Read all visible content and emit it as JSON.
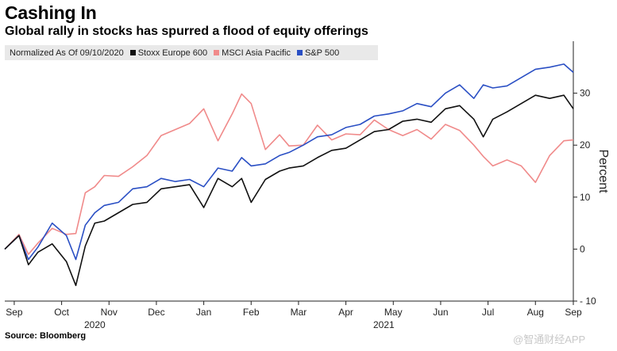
{
  "title": "Cashing In",
  "subtitle": "Global rally in stocks has spurred a flood of equity offerings",
  "legend_note": "Normalized As Of 09/10/2020",
  "source": "Source: Bloomberg",
  "watermark": "@智通财经APP",
  "chart_data": {
    "type": "line",
    "title": "Cashing In",
    "subtitle": "Global rally in stocks has spurred a flood of equity offerings",
    "ylabel": "Percent",
    "xlabel": "",
    "ylim": [
      -10,
      40
    ],
    "yticks": [
      -10,
      0,
      10,
      20,
      30
    ],
    "y_axis_side": "right",
    "xlim": [
      0,
      12
    ],
    "months": [
      "Sep",
      "Oct",
      "Nov",
      "Dec",
      "Jan",
      "Feb",
      "Mar",
      "Apr",
      "May",
      "Jun",
      "Jul",
      "Aug",
      "Sep"
    ],
    "month_positions": [
      0.2,
      1.2,
      2.2,
      3.2,
      4.2,
      5.2,
      6.2,
      7.2,
      8.2,
      9.2,
      10.2,
      11.2,
      12.0
    ],
    "years": [
      {
        "label": "2020",
        "x": 1.9
      },
      {
        "label": "2021",
        "x": 8.0
      }
    ],
    "legend_position": "top-left",
    "series": [
      {
        "name": "Stoxx Europe 600",
        "color": "#111111",
        "x": [
          0,
          0.3,
          0.5,
          0.7,
          1.0,
          1.3,
          1.5,
          1.7,
          1.9,
          2.1,
          2.4,
          2.7,
          3.0,
          3.3,
          3.6,
          3.9,
          4.2,
          4.5,
          4.8,
          5.0,
          5.2,
          5.5,
          5.8,
          6.0,
          6.3,
          6.6,
          6.9,
          7.2,
          7.5,
          7.8,
          8.1,
          8.4,
          8.7,
          9.0,
          9.3,
          9.6,
          9.9,
          10.1,
          10.3,
          10.6,
          10.9,
          11.2,
          11.5,
          11.8,
          12.0
        ],
        "y": [
          0,
          2,
          -3,
          0,
          1,
          -3,
          -7,
          0,
          5,
          6,
          7,
          8,
          9,
          11,
          12,
          13,
          8,
          13,
          12,
          13,
          9,
          14,
          15,
          15,
          16,
          17,
          19,
          20,
          21,
          22,
          23,
          24,
          25,
          25,
          27,
          27,
          25,
          21,
          25,
          27,
          28,
          29,
          29,
          29,
          27
        ]
      },
      {
        "name": "MSCI Asia Pacific",
        "color": "#f08a8a",
        "x": [
          0,
          0.3,
          0.5,
          0.7,
          1.0,
          1.3,
          1.5,
          1.7,
          1.9,
          2.1,
          2.4,
          2.7,
          3.0,
          3.3,
          3.6,
          3.9,
          4.2,
          4.5,
          4.8,
          5.0,
          5.2,
          5.5,
          5.8,
          6.0,
          6.3,
          6.6,
          6.9,
          7.2,
          7.5,
          7.8,
          8.1,
          8.4,
          8.7,
          9.0,
          9.3,
          9.6,
          9.9,
          10.1,
          10.3,
          10.6,
          10.9,
          11.2,
          11.5,
          11.8,
          12.0
        ],
        "y": [
          0,
          2,
          -1,
          2,
          4,
          2,
          3,
          10,
          12,
          15,
          14,
          15,
          18,
          21,
          23,
          25,
          27,
          20,
          26,
          29,
          28,
          20,
          22,
          19,
          20,
          23,
          21,
          23,
          22,
          24,
          23,
          21,
          23,
          22,
          24,
          22,
          20,
          17,
          16,
          18,
          16,
          12,
          18,
          20,
          21
        ]
      },
      {
        "name": "S&P 500",
        "color": "#2a4fc4",
        "x": [
          0,
          0.3,
          0.5,
          0.7,
          1.0,
          1.3,
          1.5,
          1.7,
          1.9,
          2.1,
          2.4,
          2.7,
          3.0,
          3.3,
          3.6,
          3.9,
          4.2,
          4.5,
          4.8,
          5.0,
          5.2,
          5.5,
          5.8,
          6.0,
          6.3,
          6.6,
          6.9,
          7.2,
          7.5,
          7.8,
          8.1,
          8.4,
          8.7,
          9.0,
          9.3,
          9.6,
          9.9,
          10.1,
          10.3,
          10.6,
          10.9,
          11.2,
          11.5,
          11.8,
          12.0
        ],
        "y": [
          0,
          2,
          -2,
          1,
          5,
          2,
          -2,
          4,
          7,
          9,
          9,
          11,
          12,
          13,
          13,
          14,
          12,
          15,
          15,
          17,
          16,
          17,
          18,
          18,
          20,
          21,
          22,
          24,
          24,
          25,
          26,
          26,
          28,
          28,
          30,
          31,
          29,
          31,
          31,
          32,
          33,
          34,
          35,
          35,
          34
        ]
      }
    ]
  }
}
